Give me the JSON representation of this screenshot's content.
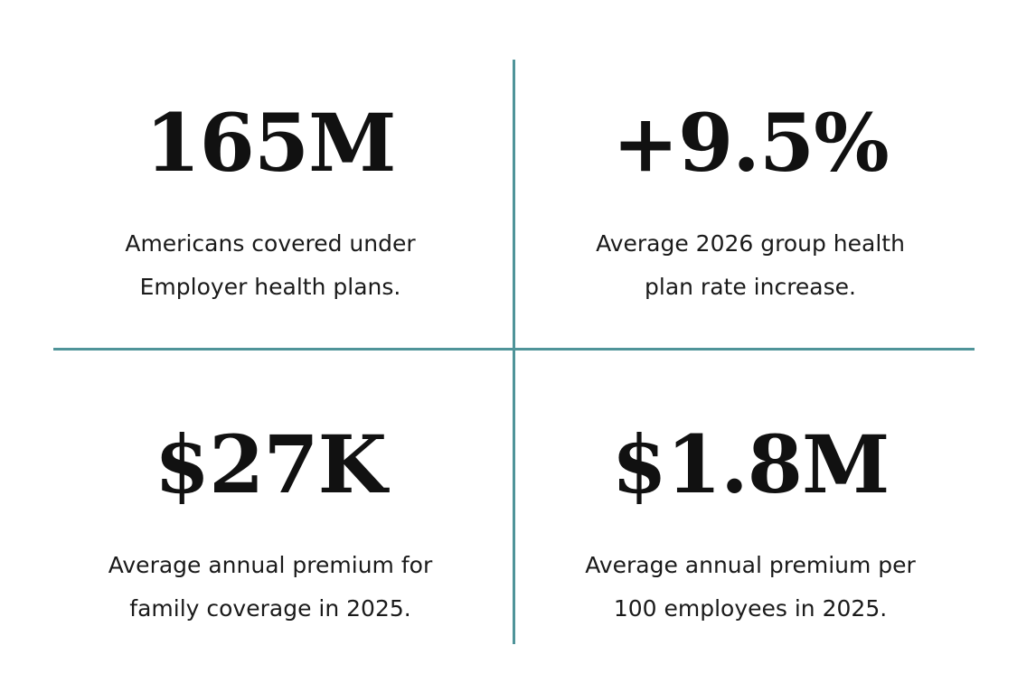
{
  "colors": {
    "divider": "#4f9499",
    "text": "#111111",
    "background": "#ffffff"
  },
  "stats": [
    {
      "value": "165M",
      "caption_lines": [
        "Americans covered under",
        "Employer health plans."
      ]
    },
    {
      "value": "+9.5%",
      "caption_lines": [
        "Average 2026 group health",
        "plan rate increase."
      ]
    },
    {
      "value": "$27K",
      "caption_lines": [
        "Average annual premium for",
        "family coverage in 2025."
      ]
    },
    {
      "value": "$1.8M",
      "caption_lines": [
        "Average annual premium per",
        "100 employees in 2025."
      ]
    }
  ]
}
